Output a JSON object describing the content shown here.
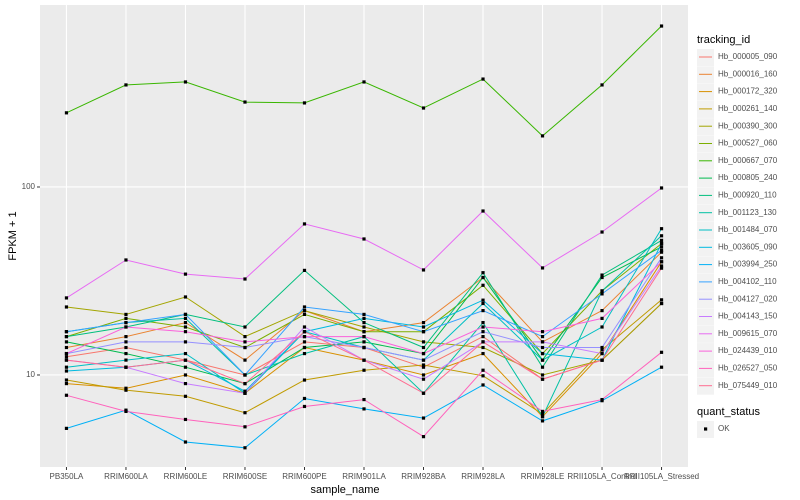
{
  "chart_data": {
    "type": "line",
    "x_label": "sample_name",
    "y_label": "FPKM + 1",
    "log_scale": true,
    "grid": true,
    "ylim": [
      3.24,
      929
    ],
    "yticks": [
      10,
      100
    ],
    "legend_title": "tracking_id",
    "legend_position": "right",
    "point_color": "#000000",
    "point_legend_title": "quant_status",
    "point_legend_labels": [
      "OK"
    ],
    "categories": [
      "PB350LA",
      "RRIM600LA",
      "RRIM600LE",
      "RRIM600SE",
      "RRIM600PE",
      "RRIM901LA",
      "RRIM928BA",
      "RRIM928LA",
      "RRIM928LE",
      "RRII105LA_Control",
      "RRII105LA_Stressed"
    ],
    "series": [
      {
        "name": "Hb_000005_090",
        "color": "#F8766D",
        "values": [
          12.5,
          14,
          12,
          10,
          15,
          14,
          11,
          16,
          9.5,
          12,
          24
        ]
      },
      {
        "name": "Hb_000016_160",
        "color": "#EA8331",
        "values": [
          14,
          16,
          19,
          12,
          22,
          17,
          19,
          33,
          15,
          22,
          45
        ]
      },
      {
        "name": "Hb_000172_320",
        "color": "#D89000",
        "values": [
          9,
          8.5,
          10,
          8,
          14,
          12,
          10,
          13,
          6,
          13,
          40
        ]
      },
      {
        "name": "Hb_000261_140",
        "color": "#C09B00",
        "values": [
          9.4,
          8.3,
          7.7,
          6.3,
          9.4,
          10.6,
          11.3,
          9.9,
          6.2,
          13.6,
          25.1
        ]
      },
      {
        "name": "Hb_000390_300",
        "color": "#A3A500",
        "values": [
          23,
          21,
          26,
          16,
          22,
          18,
          15,
          14,
          10,
          12,
          24
        ]
      },
      {
        "name": "Hb_000527_060",
        "color": "#7CAE00",
        "values": [
          16,
          20,
          18,
          14,
          21,
          17,
          17,
          30,
          13,
          28,
          50
        ]
      },
      {
        "name": "Hb_000667_070",
        "color": "#39B600",
        "values": [
          248,
          349,
          362,
          283,
          280,
          362,
          263,
          375,
          187,
          349,
          718
        ]
      },
      {
        "name": "Hb_000805_240",
        "color": "#00BB4E",
        "values": [
          15,
          13,
          11,
          9,
          14,
          15,
          13,
          33,
          12,
          33,
          48
        ]
      },
      {
        "name": "Hb_000920_110",
        "color": "#00BF7D",
        "values": [
          16,
          18,
          21,
          18,
          36,
          19,
          14,
          35,
          11,
          34,
          52
        ]
      },
      {
        "name": "Hb_001123_130",
        "color": "#00C1A3",
        "values": [
          17,
          19,
          20,
          10,
          13,
          16,
          8,
          19,
          6,
          28,
          55
        ]
      },
      {
        "name": "Hb_001484_070",
        "color": "#00BFC4",
        "values": [
          11,
          12,
          13,
          8,
          17,
          14,
          12,
          24,
          12,
          18,
          60
        ]
      },
      {
        "name": "Hb_003605_090",
        "color": "#00BAE0",
        "values": [
          10.5,
          11,
          12,
          8.2,
          17,
          20,
          18,
          25,
          13,
          12,
          50
        ]
      },
      {
        "name": "Hb_003994_250",
        "color": "#00B0F6",
        "values": [
          5.2,
          6.5,
          4.4,
          4.1,
          7.5,
          6.6,
          5.9,
          8.85,
          5.7,
          7.3,
          11
        ]
      },
      {
        "name": "Hb_004102_110",
        "color": "#35A2FF",
        "values": [
          17,
          19,
          21,
          10,
          23,
          21,
          17,
          22,
          16,
          27,
          46
        ]
      },
      {
        "name": "Hb_004127_020",
        "color": "#9590FF",
        "values": [
          13,
          15,
          15,
          14,
          16,
          14,
          12,
          17,
          14,
          14,
          42
        ]
      },
      {
        "name": "Hb_004143_150",
        "color": "#C77CFF",
        "values": [
          12,
          11,
          9,
          8,
          18,
          12,
          9.5,
          15,
          15,
          13,
          38
        ]
      },
      {
        "name": "Hb_009615_070",
        "color": "#E76BF3",
        "values": [
          25.7,
          40.9,
          34.4,
          32.4,
          63.6,
          52.9,
          36.2,
          74.5,
          37.1,
          57.6,
          98.8
        ]
      },
      {
        "name": "Hb_024439_010",
        "color": "#FA62DB",
        "values": [
          13,
          18,
          17,
          15,
          16,
          16,
          13,
          18,
          17,
          20,
          40
        ]
      },
      {
        "name": "Hb_026527_050",
        "color": "#FF62BC",
        "values": [
          7.8,
          6.4,
          5.8,
          5.3,
          6.8,
          7.4,
          4.7,
          10.6,
          6.4,
          7.4,
          13.2
        ]
      },
      {
        "name": "Hb_075449_010",
        "color": "#FF6C91",
        "values": [
          12,
          11,
          12,
          9,
          17,
          12,
          8,
          15,
          9.5,
          12,
          37
        ]
      }
    ]
  }
}
